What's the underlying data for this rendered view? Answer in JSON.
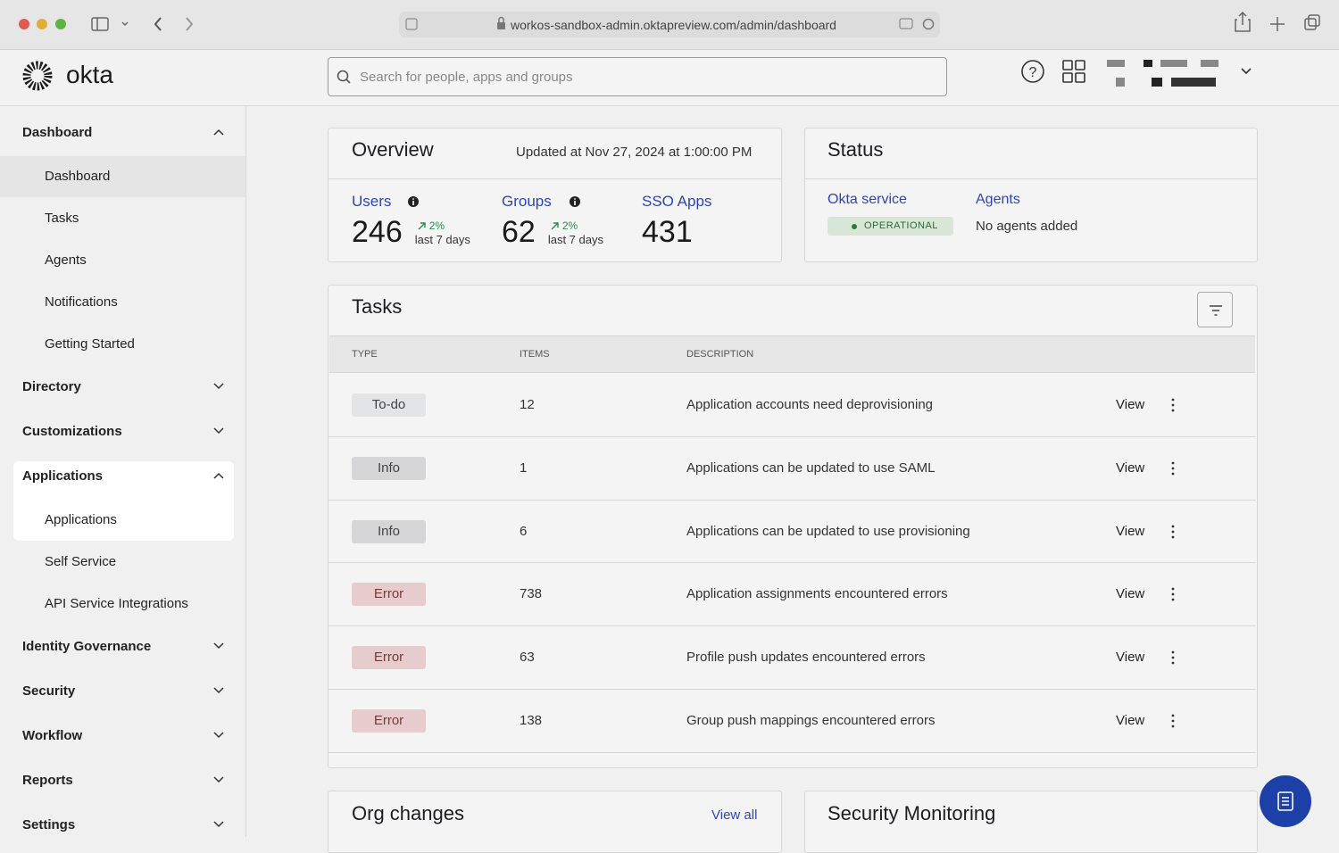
{
  "browser": {
    "url": "workos-sandbox-admin.oktapreview.com/admin/dashboard"
  },
  "header": {
    "logo": "okta",
    "search_placeholder": "Search for people, apps and groups"
  },
  "sidebar": {
    "sections": [
      {
        "label": "Dashboard",
        "items": [
          "Dashboard",
          "Tasks",
          "Agents",
          "Notifications",
          "Getting Started"
        ]
      },
      {
        "label": "Directory"
      },
      {
        "label": "Customizations"
      },
      {
        "label": "Applications",
        "items": [
          "Applications",
          "Self Service",
          "API Service Integrations"
        ]
      },
      {
        "label": "Identity Governance"
      },
      {
        "label": "Security"
      },
      {
        "label": "Workflow"
      },
      {
        "label": "Reports"
      },
      {
        "label": "Settings"
      }
    ]
  },
  "overview": {
    "title": "Overview",
    "updated": "Updated at Nov 27, 2024 at 1:00:00 PM",
    "stats": [
      {
        "label": "Users",
        "value": 246,
        "change": "2%",
        "period": "last 7 days"
      },
      {
        "label": "Groups",
        "value": 62,
        "change": "2%",
        "period": "last 7 days"
      },
      {
        "label": "SSO Apps",
        "value": 431
      }
    ]
  },
  "status": {
    "title": "Status",
    "service_label": "Okta service",
    "service_status": "OPERATIONAL",
    "agents_label": "Agents",
    "agents_text": "No agents added"
  },
  "tasks": {
    "title": "Tasks",
    "columns": [
      "TYPE",
      "ITEMS",
      "DESCRIPTION"
    ],
    "rows": [
      {
        "type": "To-do",
        "items": 12,
        "description": "Application accounts need deprovisioning",
        "action": "View"
      },
      {
        "type": "Info",
        "items": 1,
        "description": "Applications can be updated to use SAML",
        "action": "View"
      },
      {
        "type": "Info",
        "items": 6,
        "description": "Applications can be updated to use provisioning",
        "action": "View"
      },
      {
        "type": "Error",
        "items": 738,
        "description": "Application assignments encountered errors",
        "action": "View"
      },
      {
        "type": "Error",
        "items": 63,
        "description": "Profile push updates encountered errors",
        "action": "View"
      },
      {
        "type": "Error",
        "items": 138,
        "description": "Group push mappings encountered errors",
        "action": "View"
      }
    ]
  },
  "org_changes": {
    "title": "Org changes",
    "link": "View all"
  },
  "security_monitoring": {
    "title": "Security Monitoring"
  }
}
